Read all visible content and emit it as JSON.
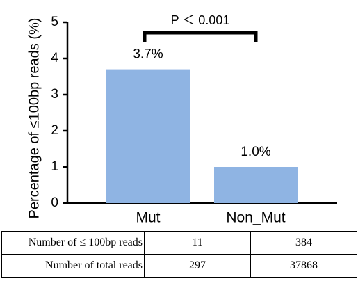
{
  "chart_data": {
    "type": "bar",
    "ylabel": "Percentage of ≤100bp reads (%)",
    "categories": [
      "Mut",
      "Non_Mut"
    ],
    "values": [
      3.7,
      1.0
    ],
    "value_labels": [
      "3.7%",
      "1.0%"
    ],
    "color": "#8fb4e3",
    "ylim": [
      0,
      5
    ],
    "yticks": [
      0,
      1,
      2,
      3,
      4,
      5
    ],
    "annotation": "P ＜ 0.001"
  },
  "table": {
    "rows": [
      [
        "Number of ≤ 100bp reads",
        11,
        384
      ],
      [
        "Number of total reads",
        297,
        37868
      ]
    ]
  }
}
